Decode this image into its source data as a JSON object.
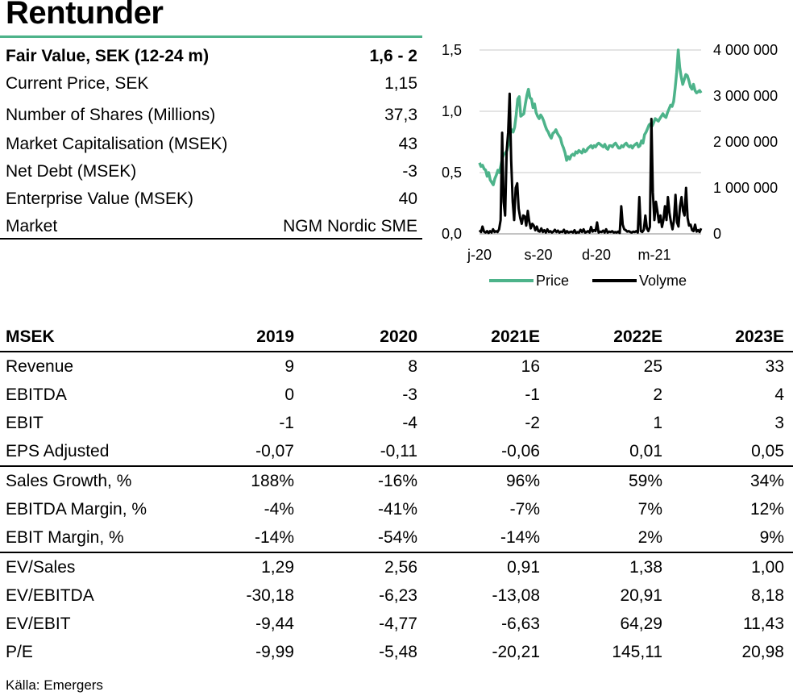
{
  "title": "Rentunder",
  "key_values": [
    {
      "label": "Fair Value, SEK (12-24 m)",
      "value": "1,6 - 2"
    },
    {
      "label": "Current Price, SEK",
      "value": "1,15"
    },
    {
      "label": "Number of Shares (Millions)",
      "value": "37,3"
    },
    {
      "label": "Market Capitalisation (MSEK)",
      "value": "43"
    },
    {
      "label": "Net Debt (MSEK)",
      "value": "-3"
    },
    {
      "label": "Enterprise Value (MSEK)",
      "value": "40"
    },
    {
      "label": "Market",
      "value": "NGM Nordic SME"
    }
  ],
  "chart_data": {
    "type": "line",
    "x_tick_labels": [
      "j-20",
      "s-20",
      "d-20",
      "m-21"
    ],
    "y_left": {
      "ticks": [
        "1,5",
        "1,0",
        "0,5",
        "0,0"
      ],
      "range": [
        0,
        1.5
      ]
    },
    "y_right": {
      "ticks": [
        "4 000 000",
        "3 000 000",
        "2 000 000",
        "1 000 000",
        "0"
      ],
      "range": [
        0,
        4000000
      ]
    },
    "grid": true,
    "legend": "bottom",
    "series": [
      {
        "name": "Price",
        "axis": "left",
        "color": "#4db38a",
        "values": [
          0.58,
          0.55,
          0.56,
          0.53,
          0.52,
          0.47,
          0.5,
          0.44,
          0.42,
          0.4,
          0.45,
          0.48,
          0.52,
          0.5,
          0.56,
          0.62,
          0.65,
          0.66,
          0.68,
          0.73,
          0.83,
          0.85,
          0.83,
          0.87,
          0.97,
          1.1,
          1.12,
          0.96,
          0.97,
          0.98,
          1.06,
          1.13,
          1.18,
          1.11,
          1.1,
          1.03,
          1.06,
          0.99,
          0.96,
          0.94,
          0.97,
          0.95,
          0.92,
          0.88,
          0.85,
          0.83,
          0.8,
          0.78,
          0.82,
          0.83,
          0.85,
          0.82,
          0.8,
          0.78,
          0.73,
          0.7,
          0.66,
          0.6,
          0.63,
          0.61,
          0.64,
          0.65,
          0.64,
          0.67,
          0.66,
          0.68,
          0.67,
          0.66,
          0.69,
          0.67,
          0.68,
          0.7,
          0.71,
          0.72,
          0.7,
          0.72,
          0.71,
          0.73,
          0.74,
          0.73,
          0.72,
          0.71,
          0.73,
          0.7,
          0.69,
          0.72,
          0.72,
          0.71,
          0.73,
          0.74,
          0.72,
          0.7,
          0.7,
          0.72,
          0.71,
          0.73,
          0.74,
          0.72,
          0.71,
          0.72,
          0.7,
          0.72,
          0.73,
          0.74,
          0.71,
          0.72,
          0.76,
          0.74,
          0.81,
          0.83,
          0.86,
          0.89,
          0.9,
          0.88,
          0.91,
          0.94,
          0.93,
          0.92,
          0.94,
          0.96,
          0.98,
          0.96,
          0.95,
          0.99,
          1.02,
          1.05,
          1.04,
          1.08,
          1.19,
          1.32,
          1.5,
          1.36,
          1.28,
          1.22,
          1.26,
          1.3,
          1.29,
          1.25,
          1.2,
          1.18,
          1.22,
          1.17,
          1.15,
          1.16,
          1.17,
          1.15
        ]
      },
      {
        "name": "Volyme",
        "axis": "right",
        "color": "#000000",
        "values": [
          80000,
          40000,
          160000,
          50000,
          30000,
          60000,
          20000,
          60000,
          30000,
          100000,
          40000,
          60000,
          40000,
          100000,
          300000,
          2200000,
          700000,
          400000,
          1800000,
          2200000,
          3050000,
          1600000,
          700000,
          300000,
          1000000,
          1100000,
          550000,
          350000,
          220000,
          400000,
          380000,
          180000,
          500000,
          270000,
          120000,
          220000,
          180000,
          80000,
          160000,
          60000,
          50000,
          120000,
          40000,
          80000,
          30000,
          100000,
          40000,
          60000,
          30000,
          50000,
          90000,
          40000,
          70000,
          30000,
          50000,
          40000,
          90000,
          20000,
          60000,
          30000,
          40000,
          50000,
          30000,
          80000,
          20000,
          40000,
          30000,
          90000,
          40000,
          100000,
          30000,
          40000,
          60000,
          30000,
          150000,
          50000,
          80000,
          60000,
          250000,
          30000,
          50000,
          40000,
          70000,
          30000,
          100000,
          30000,
          50000,
          40000,
          60000,
          30000,
          40000,
          30000,
          50000,
          20000,
          600000,
          200000,
          100000,
          80000,
          50000,
          60000,
          40000,
          30000,
          50000,
          40000,
          60000,
          30000,
          800000,
          60000,
          40000,
          90000,
          400000,
          120000,
          60000,
          150000,
          2500000,
          900000,
          300000,
          700000,
          500000,
          250000,
          400000,
          150000,
          300000,
          600000,
          300000,
          800000,
          450000,
          250000,
          100000,
          300000,
          850000,
          250000,
          160000,
          600000,
          800000,
          500000,
          400000,
          1000000,
          350000,
          180000,
          200000,
          80000,
          60000,
          200000,
          50000,
          80000,
          40000,
          120000
        ]
      }
    ]
  },
  "financial_table": {
    "header": [
      "MSEK",
      "2019",
      "2020",
      "2021E",
      "2022E",
      "2023E"
    ],
    "groups": [
      [
        [
          "Revenue",
          "9",
          "8",
          "16",
          "25",
          "33"
        ],
        [
          "EBITDA",
          "0",
          "-3",
          "-1",
          "2",
          "4"
        ],
        [
          "EBIT",
          "-1",
          "-4",
          "-2",
          "1",
          "3"
        ],
        [
          "EPS Adjusted",
          "-0,07",
          "-0,11",
          "-0,06",
          "0,01",
          "0,05"
        ]
      ],
      [
        [
          "Sales Growth, %",
          "188%",
          "-16%",
          "96%",
          "59%",
          "34%"
        ],
        [
          "EBITDA Margin, %",
          "-4%",
          "-41%",
          "-7%",
          "7%",
          "12%"
        ],
        [
          "EBIT Margin, %",
          "-14%",
          "-54%",
          "-14%",
          "2%",
          "9%"
        ]
      ],
      [
        [
          "EV/Sales",
          "1,29",
          "2,56",
          "0,91",
          "1,38",
          "1,00"
        ],
        [
          "EV/EBITDA",
          "-30,18",
          "-6,23",
          "-13,08",
          "20,91",
          "8,18"
        ],
        [
          "EV/EBIT",
          "-9,44",
          "-4,77",
          "-6,63",
          "64,29",
          "11,43"
        ],
        [
          "P/E",
          "-9,99",
          "-5,48",
          "-20,21",
          "145,11",
          "20,98"
        ]
      ]
    ]
  },
  "source": "Källa: Emergers"
}
